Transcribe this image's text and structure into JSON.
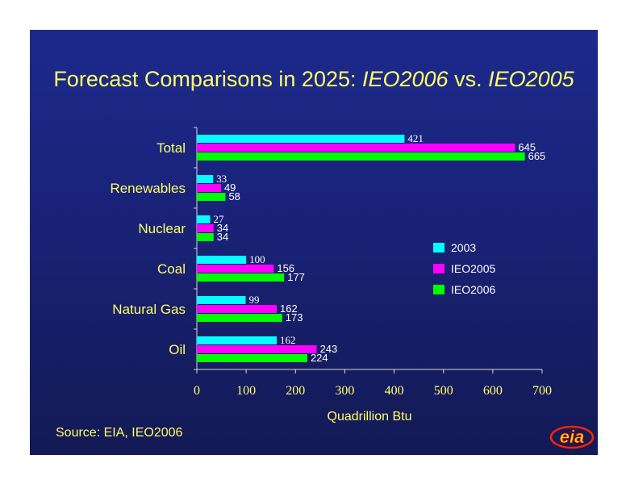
{
  "title": {
    "part1": "Forecast Comparisons in 2025:  ",
    "part2": "IEO2006",
    "part3": " vs. ",
    "part4": "IEO2005"
  },
  "source": "Source:  EIA, IEO2006",
  "logo_text": "eia",
  "colors": {
    "background": "#1a237a",
    "text": "#ffff66",
    "2003": "#00ffff",
    "IEO2005": "#ff00ff",
    "IEO2006": "#00ff00"
  },
  "chart_data": {
    "type": "bar",
    "orientation": "horizontal",
    "categories": [
      "Total",
      "Renewables",
      "Nuclear",
      "Coal",
      "Natural Gas",
      "Oil"
    ],
    "series": [
      {
        "name": "2003",
        "values": [
          421,
          33,
          27,
          100,
          99,
          162
        ]
      },
      {
        "name": "IEO2005",
        "values": [
          645,
          49,
          34,
          156,
          162,
          243
        ]
      },
      {
        "name": "IEO2006",
        "values": [
          665,
          58,
          34,
          177,
          173,
          224
        ]
      }
    ],
    "xlabel": "Quadrillion  Btu",
    "xlim": [
      0,
      700
    ],
    "xticks": [
      0,
      100,
      200,
      300,
      400,
      500,
      600,
      700
    ],
    "grid": false,
    "legend_position": "right"
  }
}
